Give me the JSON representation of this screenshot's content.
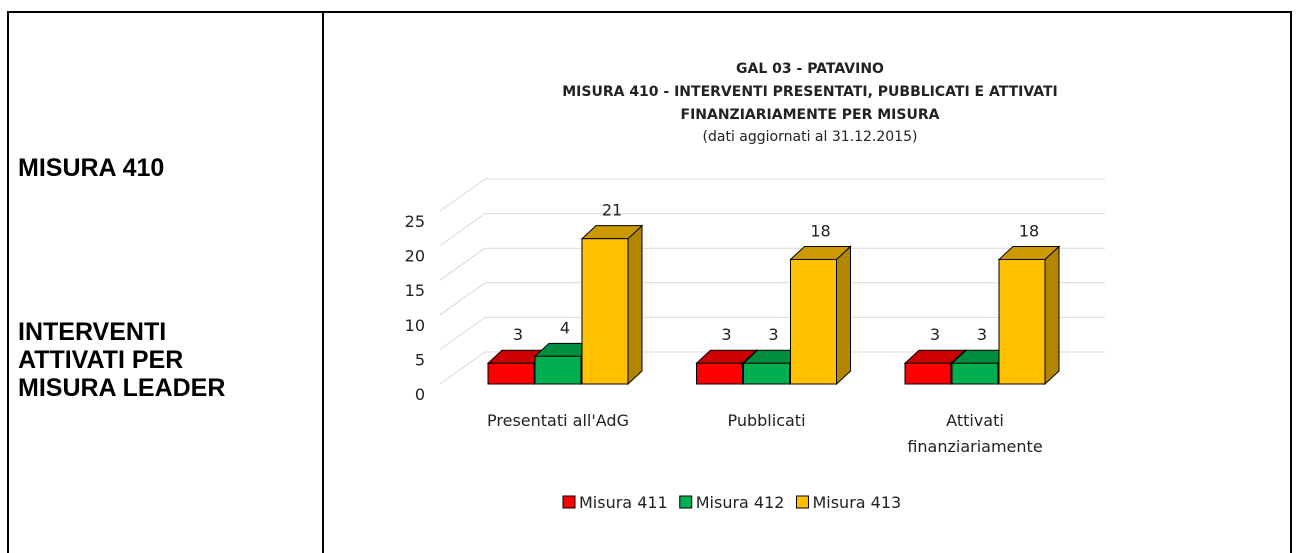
{
  "sidebar": {
    "heading": "MISURA 410",
    "subheading": "INTERVENTI ATTIVATI PER MISURA LEADER"
  },
  "chart_data": {
    "type": "bar3d",
    "title": [
      "GAL 03 - PATAVINO",
      "MISURA 410 - INTERVENTI PRESENTATI, PUBBLICATI E ATTIVATI",
      "FINANZIARIAMENTE PER MISURA"
    ],
    "subtitle": "(dati aggiornati al 31.12.2015)",
    "categories": [
      "Presentati all'AdG",
      "Pubblicati",
      "Attivati finanziariamente"
    ],
    "series": [
      {
        "name": "Misura 411",
        "color": "#ff0000",
        "values": [
          3,
          3,
          3
        ]
      },
      {
        "name": "Misura 412",
        "color": "#00b050",
        "values": [
          4,
          3,
          3
        ]
      },
      {
        "name": "Misura 413",
        "color": "#ffc000",
        "values": [
          21,
          18,
          18
        ]
      }
    ],
    "ylim": [
      0,
      25
    ],
    "yticks": [
      0,
      5,
      10,
      15,
      20,
      25
    ],
    "grid": true,
    "legend": "bottom"
  }
}
